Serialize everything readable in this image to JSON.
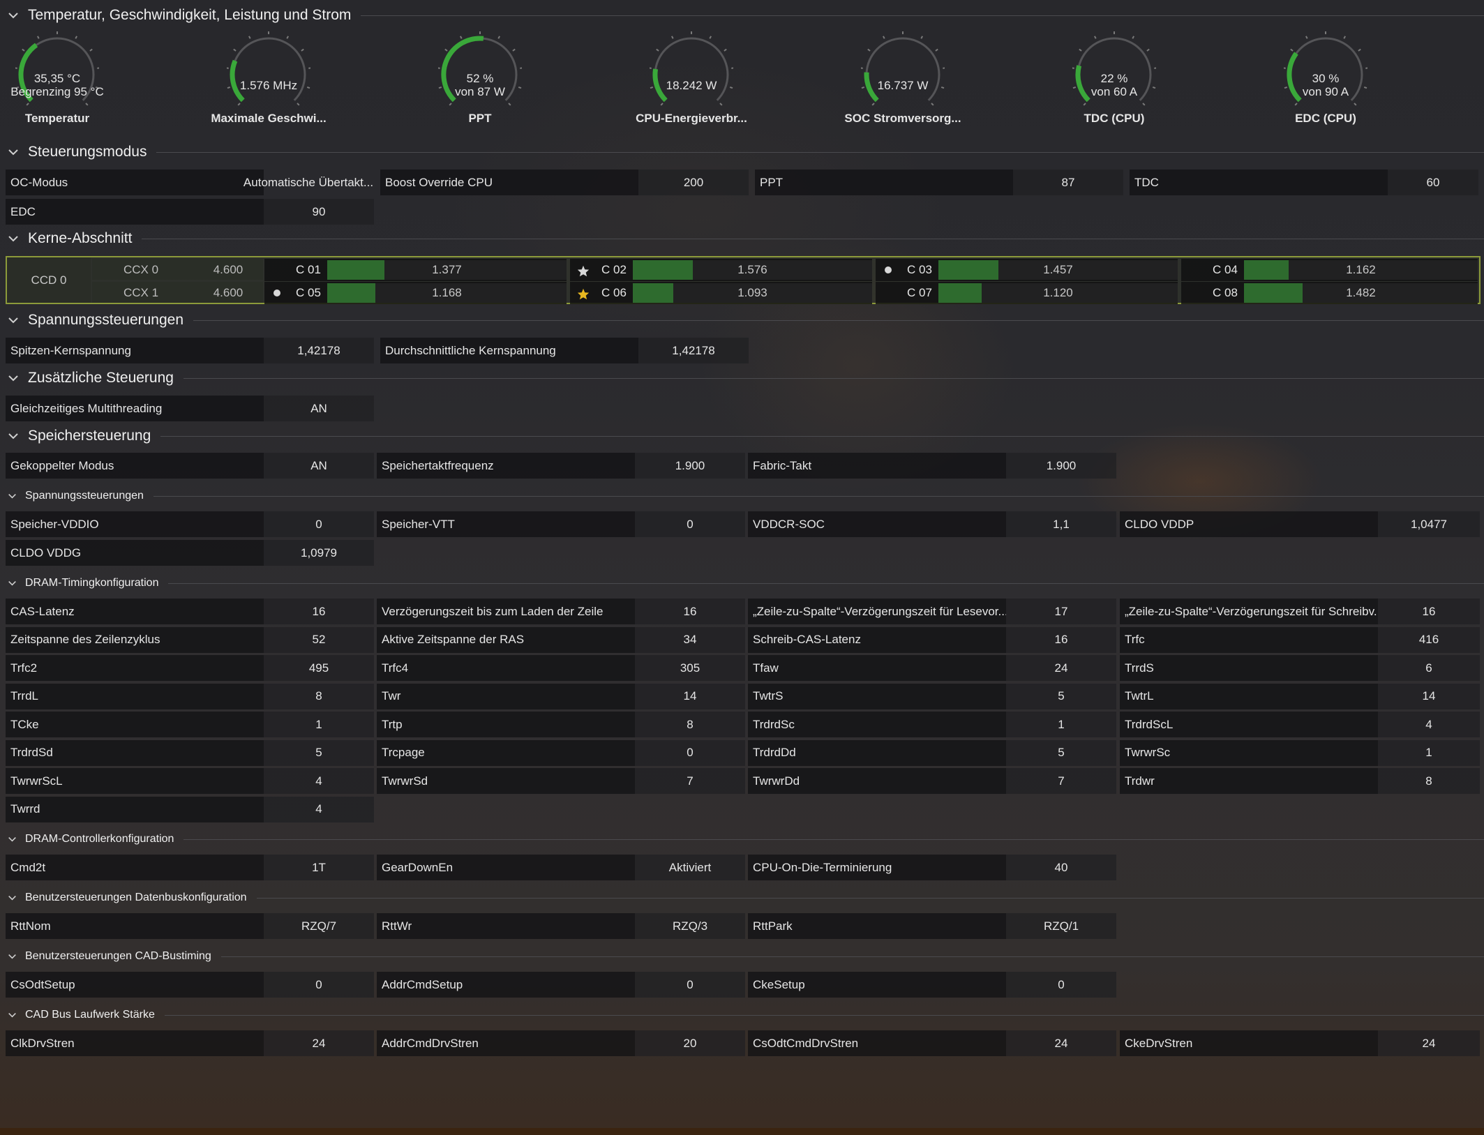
{
  "sections": {
    "temp": "Temperatur, Geschwindigkeit, Leistung und Strom",
    "control": "Steuerungsmodus",
    "cores": "Kerne-Abschnitt",
    "voltage": "Spannungssteuerungen",
    "additional": "Zusätzliche Steuerung",
    "memory": "Speichersteuerung",
    "mem_voltage": "Spannungssteuerungen",
    "dram_timing": "DRAM-Timingkonfiguration",
    "dram_controller": "DRAM-Controllerkonfiguration",
    "databus": "Benutzersteuerungen Datenbuskonfiguration",
    "cad_timing": "Benutzersteuerungen CAD-Bustiming",
    "cad_drive": "CAD Bus Laufwerk Stärke"
  },
  "gauges": [
    {
      "line1": "35,35 °C",
      "line2": "Begrenzing 95 °C",
      "name": "Temperatur",
      "level": 0.37
    },
    {
      "line1": "1.576  MHz",
      "line2": "",
      "name": "Maximale Geschwi...",
      "level": 0.25
    },
    {
      "line1": "52 %",
      "line2": "von 87 W",
      "name": "PPT",
      "level": 0.52
    },
    {
      "line1": "18.242 W",
      "line2": "",
      "name": "CPU-Energieverbr...",
      "level": 0.2
    },
    {
      "line1": "16.737 W",
      "line2": "",
      "name": "SOC Stromversorg...",
      "level": 0.18
    },
    {
      "line1": "22 %",
      "line2": "von 60 A",
      "name": "TDC (CPU)",
      "level": 0.22
    },
    {
      "line1": "30 %",
      "line2": "von 90 A",
      "name": "EDC (CPU)",
      "level": 0.3
    }
  ],
  "control": {
    "oc_label": "OC-Modus",
    "oc_value": "Automatische Übertakt...",
    "boost_label": "Boost Override CPU",
    "boost_value": "200",
    "ppt_label": "PPT",
    "ppt_value": "87",
    "tdc_label": "TDC",
    "tdc_value": "60",
    "edc_label": "EDC",
    "edc_value": "90"
  },
  "cores": {
    "ccd": "CCD 0",
    "ccx": [
      {
        "name": "CCX 0",
        "freq": "4.600"
      },
      {
        "name": "CCX 1",
        "freq": "4.600"
      }
    ],
    "list": [
      {
        "name": "C 01",
        "value": "1.377",
        "mark": "none",
        "level": 0.24
      },
      {
        "name": "C 02",
        "value": "1.576",
        "mark": "star-white",
        "level": 0.25
      },
      {
        "name": "C 03",
        "value": "1.457",
        "mark": "dot",
        "level": 0.25
      },
      {
        "name": "C 04",
        "value": "1.162",
        "mark": "none",
        "level": 0.19
      },
      {
        "name": "C 05",
        "value": "1.168",
        "mark": "dot",
        "level": 0.2
      },
      {
        "name": "C 06",
        "value": "1.093",
        "mark": "star-gold",
        "level": 0.17
      },
      {
        "name": "C 07",
        "value": "1.120",
        "mark": "none",
        "level": 0.18
      },
      {
        "name": "C 08",
        "value": "1.482",
        "mark": "none",
        "level": 0.25
      }
    ]
  },
  "voltage": {
    "peak_label": "Spitzen-Kernspannung",
    "peak_value": "1,42178",
    "avg_label": "Durchschnittliche Kernspannung",
    "avg_value": "1,42178"
  },
  "additional": {
    "smt_label": "Gleichzeitiges Multithreading",
    "smt_value": "AN"
  },
  "memory": {
    "rows": [
      [
        {
          "l": "Gekoppelter Modus",
          "v": "AN"
        },
        {
          "l": "Speichertaktfrequenz",
          "v": "1.900"
        },
        {
          "l": "Fabric-Takt",
          "v": "1.900"
        }
      ]
    ]
  },
  "mem_voltage": {
    "rows": [
      [
        {
          "l": "Speicher-VDDIO",
          "v": "0"
        },
        {
          "l": "Speicher-VTT",
          "v": "0"
        },
        {
          "l": "VDDCR-SOC",
          "v": "1,1"
        },
        {
          "l": "CLDO VDDP",
          "v": "1,0477"
        }
      ],
      [
        {
          "l": "CLDO VDDG",
          "v": "1,0979"
        }
      ]
    ]
  },
  "dram_timing": {
    "rows": [
      [
        {
          "l": "CAS-Latenz",
          "v": "16"
        },
        {
          "l": "Verzögerungszeit bis zum Laden der Zeile",
          "v": "16"
        },
        {
          "l": "„Zeile-zu-Spalte“-Verzögerungszeit für Lesevor...",
          "v": "17"
        },
        {
          "l": "„Zeile-zu-Spalte“-Verzögerungszeit für Schreibv...",
          "v": "16"
        }
      ],
      [
        {
          "l": "Zeitspanne des Zeilenzyklus",
          "v": "52"
        },
        {
          "l": "Aktive Zeitspanne der RAS",
          "v": "34"
        },
        {
          "l": "Schreib-CAS-Latenz",
          "v": "16"
        },
        {
          "l": "Trfc",
          "v": "416"
        }
      ],
      [
        {
          "l": "Trfc2",
          "v": "495"
        },
        {
          "l": "Trfc4",
          "v": "305"
        },
        {
          "l": "Tfaw",
          "v": "24"
        },
        {
          "l": "TrrdS",
          "v": "6"
        }
      ],
      [
        {
          "l": "TrrdL",
          "v": "8"
        },
        {
          "l": "Twr",
          "v": "14"
        },
        {
          "l": "TwtrS",
          "v": "5"
        },
        {
          "l": "TwtrL",
          "v": "14"
        }
      ],
      [
        {
          "l": "TCke",
          "v": "1"
        },
        {
          "l": "Trtp",
          "v": "8"
        },
        {
          "l": "TrdrdSc",
          "v": "1"
        },
        {
          "l": "TrdrdScL",
          "v": "4"
        }
      ],
      [
        {
          "l": "TrdrdSd",
          "v": "5"
        },
        {
          "l": "Trcpage",
          "v": "0"
        },
        {
          "l": "TrdrdDd",
          "v": "5"
        },
        {
          "l": "TwrwrSc",
          "v": "1"
        }
      ],
      [
        {
          "l": "TwrwrScL",
          "v": "4"
        },
        {
          "l": "TwrwrSd",
          "v": "7"
        },
        {
          "l": "TwrwrDd",
          "v": "7"
        },
        {
          "l": "Trdwr",
          "v": "8"
        }
      ],
      [
        {
          "l": "Twrrd",
          "v": "4"
        }
      ]
    ]
  },
  "dram_controller": {
    "rows": [
      [
        {
          "l": "Cmd2t",
          "v": "1T"
        },
        {
          "l": "GearDownEn",
          "v": "Aktiviert"
        },
        {
          "l": "CPU-On-Die-Terminierung",
          "v": "40"
        }
      ]
    ]
  },
  "databus": {
    "rows": [
      [
        {
          "l": "RttNom",
          "v": "RZQ/7"
        },
        {
          "l": "RttWr",
          "v": "RZQ/3"
        },
        {
          "l": "RttPark",
          "v": "RZQ/1"
        }
      ]
    ]
  },
  "cad_timing": {
    "rows": [
      [
        {
          "l": "CsOdtSetup",
          "v": "0"
        },
        {
          "l": "AddrCmdSetup",
          "v": "0"
        },
        {
          "l": "CkeSetup",
          "v": "0"
        }
      ]
    ]
  },
  "cad_drive": {
    "rows": [
      [
        {
          "l": "ClkDrvStren",
          "v": "24"
        },
        {
          "l": "AddrCmdDrvStren",
          "v": "20"
        },
        {
          "l": "CsOdtCmdDrvStren",
          "v": "24"
        },
        {
          "l": "CkeDrvStren",
          "v": "24"
        }
      ]
    ]
  },
  "colors": {
    "gauge_green": "#3aa83a",
    "core_bar": "#2e6b2e",
    "highlight_border": "#8c9a3a",
    "star_gold": "#e8b820"
  }
}
